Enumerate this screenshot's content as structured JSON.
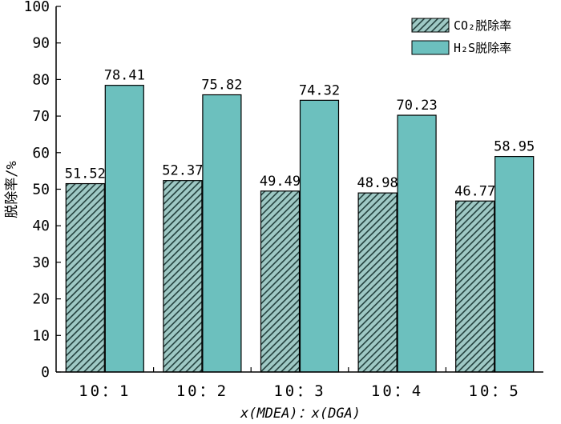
{
  "chart_data": {
    "type": "bar",
    "categories": [
      "10：1",
      "10：2",
      "10：3",
      "10：4",
      "10：5"
    ],
    "series": [
      {
        "name": "CO₂脱除率",
        "values": [
          51.52,
          52.37,
          49.49,
          48.98,
          46.77
        ],
        "color": "#2f6b66",
        "pattern": "diagonal-hatch"
      },
      {
        "name": "H₂S脱除率",
        "values": [
          78.41,
          75.82,
          74.32,
          70.23,
          58.95
        ],
        "color": "#6cc0be"
      }
    ],
    "data_labels": {
      "CO2": [
        "51.52",
        "52.37",
        "49.49",
        "48.98",
        "46.77"
      ],
      "H2S": [
        "78.41",
        "75.82",
        "74.32",
        "70.23",
        "58.95"
      ]
    },
    "xlabel": "x(MDEA)：x(DGA)",
    "ylabel": "脱除率/%",
    "ylim": [
      0,
      100
    ],
    "yticks": [
      "0",
      "10",
      "20",
      "30",
      "40",
      "50",
      "60",
      "70",
      "80",
      "90",
      "100"
    ],
    "legend_position": "top-right",
    "grid": false
  }
}
